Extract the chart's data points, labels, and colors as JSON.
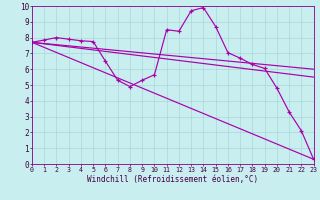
{
  "xlabel": "Windchill (Refroidissement éolien,°C)",
  "background_color": "#c8eef0",
  "grid_color": "#aad8da",
  "line_color": "#aa00aa",
  "xlim": [
    0,
    23
  ],
  "ylim": [
    0,
    10
  ],
  "xticks": [
    0,
    1,
    2,
    3,
    4,
    5,
    6,
    7,
    8,
    9,
    10,
    11,
    12,
    13,
    14,
    15,
    16,
    17,
    18,
    19,
    20,
    21,
    22,
    23
  ],
  "yticks": [
    0,
    1,
    2,
    3,
    4,
    5,
    6,
    7,
    8,
    9,
    10
  ],
  "line_wiggly": {
    "x": [
      0,
      1,
      2,
      3,
      4,
      5,
      6,
      7,
      8,
      9,
      10,
      11,
      12,
      13,
      14,
      15,
      16,
      17,
      18,
      19,
      20,
      21,
      22,
      23
    ],
    "y": [
      7.7,
      7.85,
      8.0,
      7.9,
      7.8,
      7.75,
      6.5,
      5.3,
      4.9,
      5.3,
      5.65,
      8.5,
      8.4,
      9.7,
      9.9,
      8.7,
      7.05,
      6.7,
      6.3,
      6.05,
      4.8,
      3.3,
      2.1,
      0.3
    ]
  },
  "line_flat": {
    "x": [
      0,
      23
    ],
    "y": [
      7.7,
      6.0
    ]
  },
  "line_mid": {
    "x": [
      0,
      23
    ],
    "y": [
      7.7,
      5.5
    ]
  },
  "line_steep": {
    "x": [
      0,
      23
    ],
    "y": [
      7.7,
      0.3
    ]
  },
  "tick_fontsize": 4.8,
  "xlabel_fontsize": 5.5,
  "linewidth": 0.85
}
